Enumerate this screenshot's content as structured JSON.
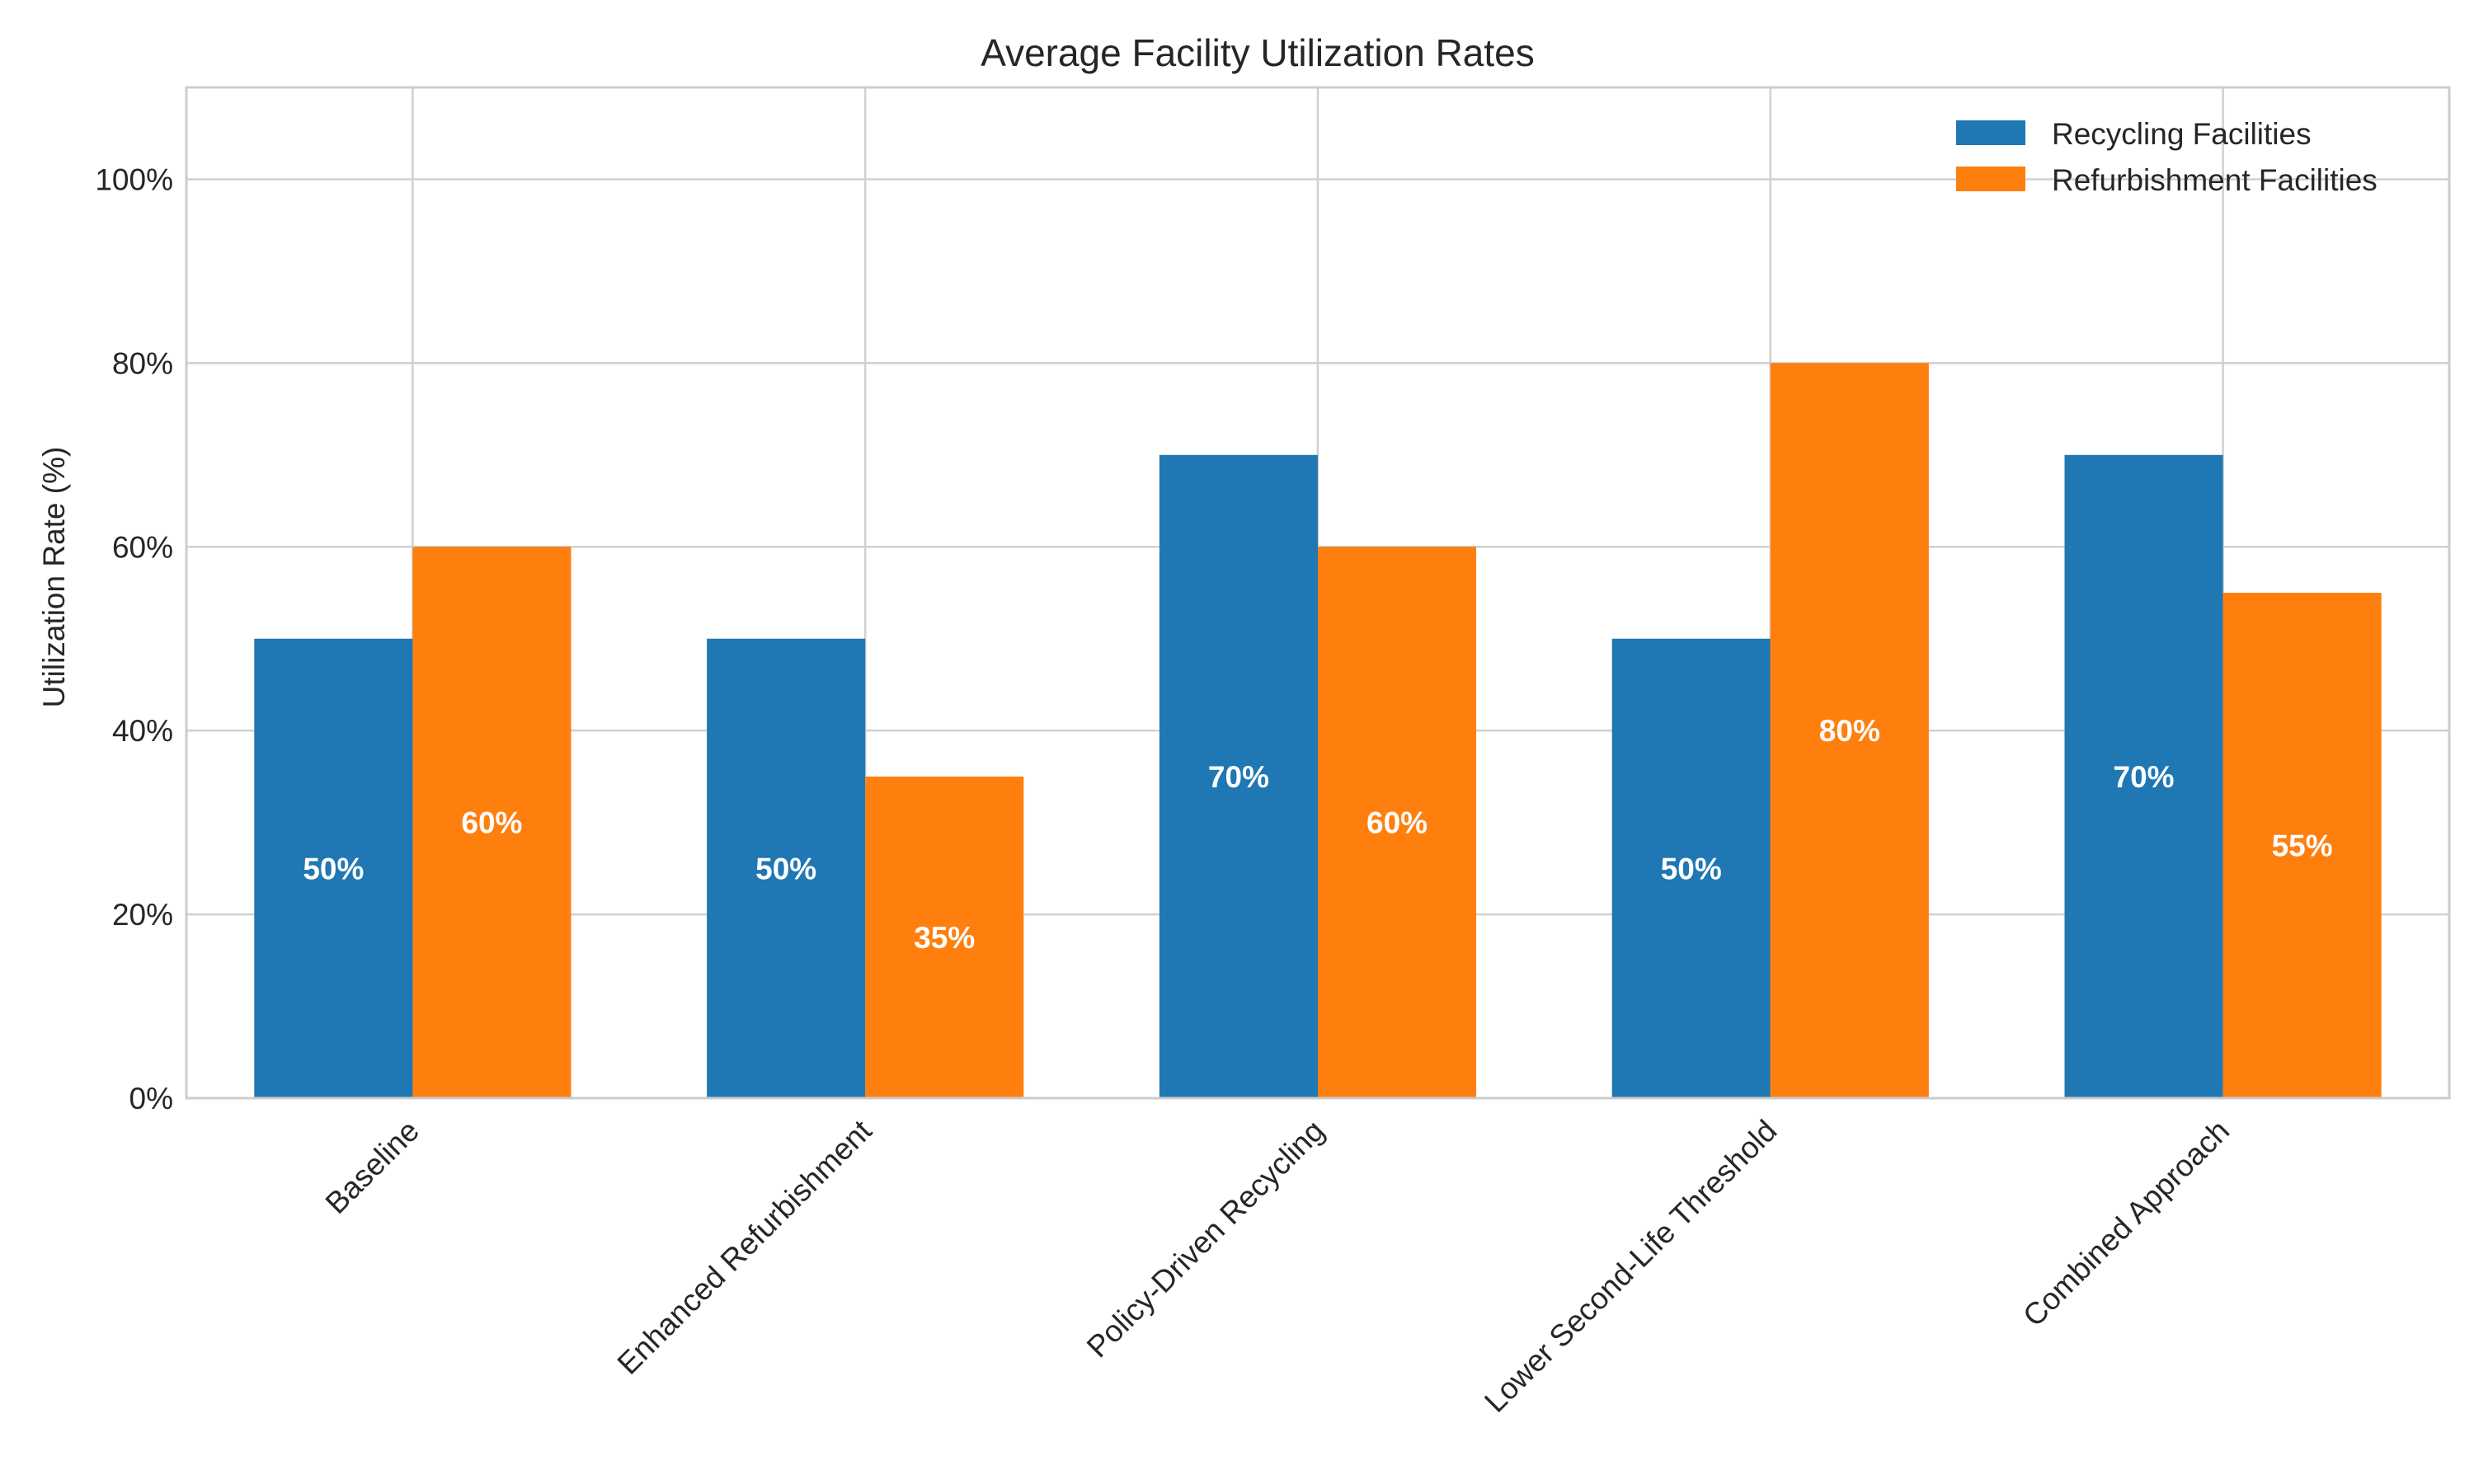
{
  "chart_data": {
    "type": "bar",
    "title": "Average Facility Utilization Rates",
    "xlabel": "",
    "ylabel": "Utilization Rate (%)",
    "categories": [
      "Baseline",
      "Enhanced Refurbishment",
      "Policy-Driven Recycling",
      "Lower Second-Life Threshold",
      "Combined Approach"
    ],
    "series": [
      {
        "name": "Recycling Facilities",
        "color": "#1f77b4",
        "values": [
          50,
          50,
          70,
          50,
          70
        ]
      },
      {
        "name": "Refurbishment Facilities",
        "color": "#ff7f0e",
        "values": [
          60,
          35,
          60,
          80,
          55
        ]
      }
    ],
    "ylim": [
      0,
      110
    ],
    "yticks": [
      0,
      20,
      40,
      60,
      80,
      100
    ],
    "ytick_labels": [
      "0%",
      "20%",
      "40%",
      "60%",
      "80%",
      "100%"
    ],
    "data_label_suffix": "%",
    "grid": true,
    "legend_position": "top-right"
  }
}
